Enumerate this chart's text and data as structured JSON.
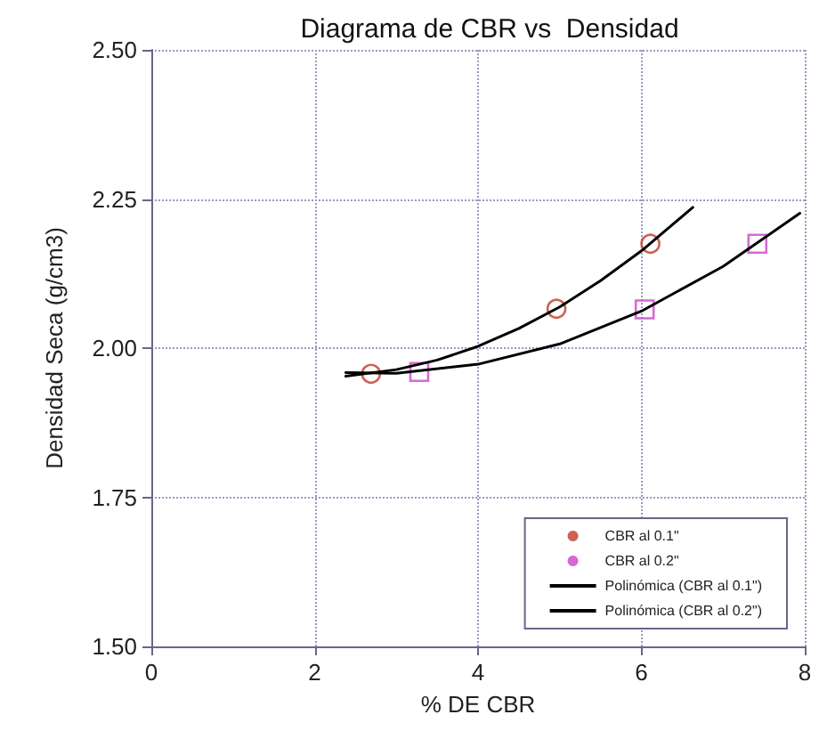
{
  "chart_data": {
    "type": "scatter",
    "title": "Diagrama de CBR vs  Densidad",
    "xlabel": "% DE CBR",
    "ylabel": "Densidad Seca (g/cm3)",
    "xlim": [
      0,
      8
    ],
    "xticks": [
      0,
      2,
      4,
      6,
      8
    ],
    "ylim": [
      1.5,
      2.5
    ],
    "yticks": [
      {
        "value": 1.5,
        "label": "1.50"
      },
      {
        "value": 1.75,
        "label": "1.75"
      },
      {
        "value": 2,
        "label": "2.00"
      },
      {
        "value": 2.25,
        "label": "2.25"
      },
      {
        "value": 2.5,
        "label": "2.50"
      }
    ],
    "grid": true,
    "legend": "bottom right",
    "series": [
      {
        "name": "CBR al 0.1\"",
        "marker": "circle",
        "color": "#c0392b",
        "x": [
          2.69,
          4.96,
          6.11
        ],
        "values": [
          1.957,
          2.066,
          2.175
        ]
      },
      {
        "name": "CBR al 0.2\"",
        "marker": "square",
        "color": "#cc44cc",
        "x": [
          3.28,
          6.04,
          7.42
        ],
        "values": [
          1.96,
          2.065,
          2.175
        ]
      },
      {
        "name": "Polinómica (CBR al 0.1\")",
        "type": "line",
        "marker": "none",
        "line_style": "solid",
        "color": "#000000",
        "x": [
          2.38,
          3,
          3.5,
          4,
          4.5,
          5,
          5.5,
          6,
          6.63
        ],
        "values": [
          1.953,
          1.964,
          1.98,
          2.003,
          2.033,
          2.069,
          2.113,
          2.163,
          2.236
        ]
      },
      {
        "name": "Polinómica (CBR al 0.2\")",
        "type": "line",
        "marker": "none",
        "line_style": "solid",
        "color": "#000000",
        "x": [
          2.38,
          3,
          4,
          5,
          6,
          7,
          7.94
        ],
        "values": [
          1.959,
          1.958,
          1.973,
          2.007,
          2.062,
          2.137,
          2.226
        ]
      }
    ]
  }
}
